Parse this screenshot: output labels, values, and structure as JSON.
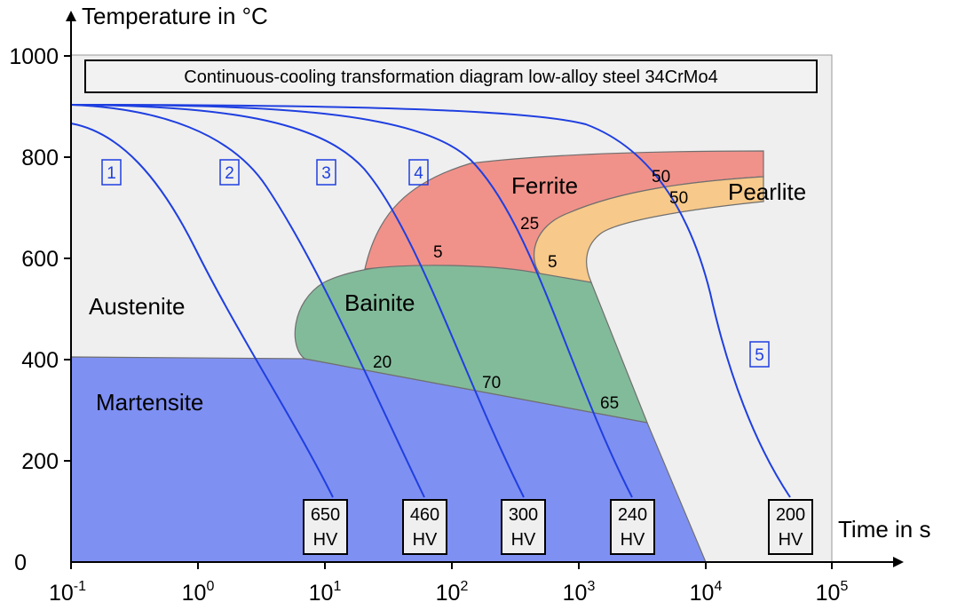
{
  "title": "Continuous-cooling transformation diagram low-alloy steel 34CrMo4",
  "y_axis": {
    "label": "Temperature in °C",
    "ticks": [
      "0",
      "200",
      "400",
      "600",
      "800",
      "1000"
    ]
  },
  "x_axis": {
    "label": "Time in s",
    "ticks": [
      {
        "base": "10",
        "exp": "-1"
      },
      {
        "base": "10",
        "exp": "0"
      },
      {
        "base": "10",
        "exp": "1"
      },
      {
        "base": "10",
        "exp": "2"
      },
      {
        "base": "10",
        "exp": "3"
      },
      {
        "base": "10",
        "exp": "4"
      },
      {
        "base": "10",
        "exp": "5"
      }
    ]
  },
  "phases": {
    "austenite": "Austenite",
    "martensite": "Martensite",
    "bainite": "Bainite",
    "ferrite": "Ferrite",
    "pearlite": "Pearlite"
  },
  "colors": {
    "austenite": "#efefef",
    "martensite": "#7f90f3",
    "bainite": "#82bb9a",
    "ferrite": "#f0928a",
    "pearlite": "#f7c98a",
    "curve": "#1f3fe0"
  },
  "curves": [
    {
      "number": "1",
      "hv_value": "650",
      "hv_unit": "HV"
    },
    {
      "number": "2",
      "hv_value": "460",
      "hv_unit": "HV"
    },
    {
      "number": "3",
      "hv_value": "300",
      "hv_unit": "HV"
    },
    {
      "number": "4",
      "hv_value": "240",
      "hv_unit": "HV"
    },
    {
      "number": "5",
      "hv_value": "200",
      "hv_unit": "HV"
    }
  ],
  "percent_labels": {
    "ferrite_c3": "5",
    "ferrite_c4": "25",
    "pearlite_c4": "5",
    "ferrite_c5": "50",
    "pearlite_c5": "50",
    "martensite_c2": "20",
    "martensite_c3": "70",
    "martensite_c4": "65"
  }
}
